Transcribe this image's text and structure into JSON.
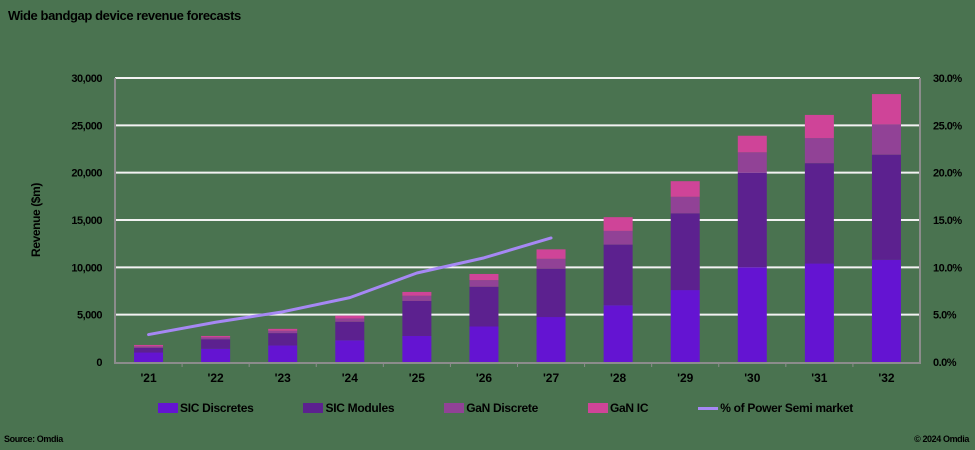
{
  "title": "Wide bandgap device revenue forecasts",
  "source": "Source: Omdia",
  "copyright": "© 2024 Omdia",
  "colors": {
    "background": "#4a7350",
    "sic_discretes": "#6414d2",
    "sic_modules": "#5c218f",
    "gan_discrete": "#914296",
    "gan_ic": "#cf4498",
    "line": "#a688f4",
    "grid": "#f2f2f2",
    "axis": "#8c8c8c"
  },
  "legend": [
    {
      "label": "SIC Discretes",
      "color": "#6414d2",
      "type": "box"
    },
    {
      "label": "SIC Modules",
      "color": "#5c218f",
      "type": "box"
    },
    {
      "label": "GaN Discrete",
      "color": "#914296",
      "type": "box"
    },
    {
      "label": "GaN IC",
      "color": "#cf4498",
      "type": "box"
    },
    {
      "label": "% of Power Semi market",
      "color": "#a688f4",
      "type": "line"
    }
  ],
  "chart_data": {
    "type": "bar",
    "stacked": true,
    "title": "Wide bandgap device revenue forecasts",
    "xlabel": "",
    "ylabel": "Revenue ($m)",
    "y2label": "",
    "categories": [
      "'21",
      "'22",
      "'23",
      "'24",
      "'25",
      "'26",
      "'27",
      "'28",
      "'29",
      "'30",
      "'31",
      "'32"
    ],
    "ylim": [
      0,
      30000
    ],
    "y_ticks": [
      "0",
      "5,000",
      "10,000",
      "15,000",
      "20,000",
      "25,000",
      "30,000"
    ],
    "y2lim": [
      0,
      30
    ],
    "y2_ticks": [
      "0.0%",
      "5.0%",
      "10.0%",
      "15.0%",
      "20.0%",
      "25.0%",
      "30.0%"
    ],
    "grid": true,
    "legend_position": "bottom",
    "series": [
      {
        "name": "SIC Discretes",
        "axis": "left",
        "type": "bar",
        "values": [
          1000,
          1400,
          1750,
          2300,
          2750,
          3750,
          4750,
          6000,
          7600,
          10000,
          10400,
          10800
        ]
      },
      {
        "name": "SIC Modules",
        "axis": "left",
        "type": "bar",
        "values": [
          500,
          1000,
          1300,
          1950,
          3700,
          4200,
          5100,
          6400,
          8100,
          10000,
          10600,
          11100
        ]
      },
      {
        "name": "GaN Discrete",
        "axis": "left",
        "type": "bar",
        "values": [
          150,
          200,
          250,
          350,
          550,
          700,
          1050,
          1450,
          1750,
          2150,
          2650,
          3200
        ]
      },
      {
        "name": "GaN IC",
        "axis": "left",
        "type": "bar",
        "values": [
          150,
          150,
          200,
          300,
          400,
          650,
          1000,
          1450,
          1650,
          1750,
          2450,
          3200
        ]
      },
      {
        "name": "% of Power Semi market",
        "axis": "right",
        "type": "line",
        "values": [
          2.9,
          4.2,
          5.3,
          6.8,
          9.4,
          11.0,
          13.1,
          null,
          null,
          null,
          null,
          null
        ]
      }
    ]
  }
}
